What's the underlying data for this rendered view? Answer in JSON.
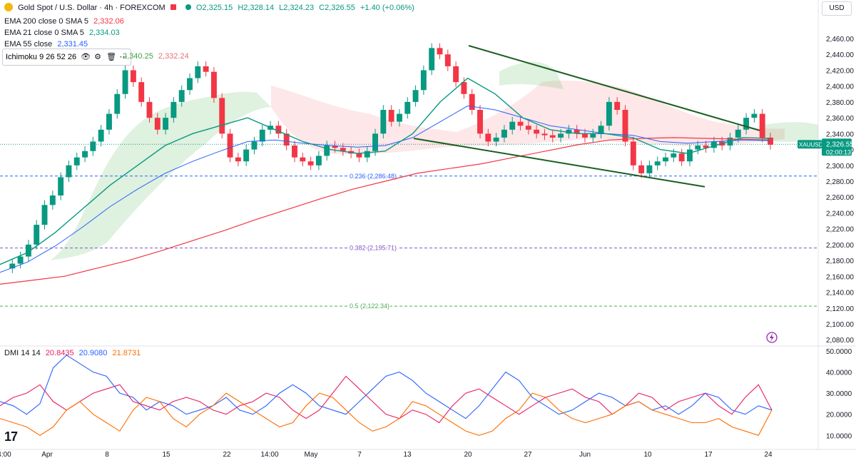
{
  "header": {
    "symbol": "Gold Spot / U.S. Dollar · 4h · FOREXCOM",
    "ohlc": {
      "o": "O2,325.15",
      "h": "H2,328.14",
      "l": "L2,324.23",
      "c": "C2,326.55",
      "chg": "+1.40 (+0.06%)"
    },
    "currency_button": "USD"
  },
  "indicators": {
    "ema200": {
      "label": "EMA 200 close 0 SMA 5",
      "value": "2,332.06",
      "color": "#f23645"
    },
    "ema21": {
      "label": "EMA 21 close 0 SMA 5",
      "value": "2,334.03",
      "color": "#089981"
    },
    "ema55": {
      "label": "EMA 55 close",
      "value": "2,331.45",
      "color": "#2962ff"
    },
    "ichimoku": {
      "label": "Ichimoku 9 26 52 26",
      "value1": "2,340.25",
      "value2": "2,332.24"
    }
  },
  "price_tag": {
    "symbol": "XAUUSD",
    "price": "2,326.55",
    "countdown": "02:00:13"
  },
  "dmi_legend": {
    "label": "DMI 14 14",
    "v1": "20.8435",
    "v2": "20.9080",
    "v3": "21.8731"
  },
  "tv_logo": "17",
  "chart_data": {
    "type": "line",
    "title": "Gold Spot / U.S. Dollar · 4h · FOREXCOM",
    "price_axis": {
      "range": [
        2073,
        2487
      ],
      "ticks": [
        "2,460.00",
        "2,440.00",
        "2,420.00",
        "2,400.00",
        "2,380.00",
        "2,360.00",
        "2,340.00",
        "2,320.00",
        "2,300.00",
        "2,280.00",
        "2,260.00",
        "2,240.00",
        "2,220.00",
        "2,200.00",
        "2,180.00",
        "2,160.00",
        "2,140.00",
        "2,120.00",
        "2,100.00",
        "2,080.00"
      ]
    },
    "time_axis": [
      "4:00",
      "Apr",
      "8",
      "15",
      "22",
      "14:00",
      "May",
      "7",
      "13",
      "20",
      "27",
      "Jun",
      "10",
      "17",
      "24"
    ],
    "fib_levels": [
      {
        "label": "0.236 (2,286.48)",
        "value": 2286.48,
        "color": "#2962ff"
      },
      {
        "label": "0.382 (2,195.71)",
        "value": 2195.71,
        "color": "#7e57c2"
      },
      {
        "label": "0.5 (2,122.34)",
        "value": 2122.34,
        "color": "#4caf50"
      }
    ],
    "close_series": [
      2170,
      2176,
      2185,
      2200,
      2225,
      2250,
      2262,
      2285,
      2300,
      2310,
      2318,
      2330,
      2345,
      2365,
      2390,
      2420,
      2405,
      2380,
      2360,
      2345,
      2360,
      2380,
      2395,
      2410,
      2425,
      2418,
      2385,
      2340,
      2310,
      2305,
      2320,
      2330,
      2345,
      2350,
      2340,
      2325,
      2310,
      2305,
      2300,
      2312,
      2325,
      2322,
      2318,
      2315,
      2310,
      2318,
      2340,
      2370,
      2355,
      2365,
      2380,
      2395,
      2420,
      2448,
      2440,
      2425,
      2405,
      2390,
      2370,
      2340,
      2330,
      2335,
      2345,
      2355,
      2350,
      2345,
      2340,
      2338,
      2335,
      2340,
      2345,
      2340,
      2335,
      2340,
      2350,
      2380,
      2370,
      2330,
      2300,
      2290,
      2300,
      2305,
      2310,
      2315,
      2305,
      2320,
      2325,
      2322,
      2330,
      2325,
      2335,
      2345,
      2360,
      2365,
      2335,
      2326
    ],
    "ema200_series": [
      2150,
      2155,
      2160,
      2170,
      2180,
      2192,
      2205,
      2218,
      2232,
      2245,
      2258,
      2270,
      2280,
      2290,
      2296,
      2302,
      2310,
      2318,
      2326,
      2332,
      2334,
      2335,
      2334,
      2333,
      2332
    ],
    "ema21_series": [
      2175,
      2190,
      2215,
      2245,
      2275,
      2300,
      2325,
      2340,
      2350,
      2360,
      2345,
      2330,
      2320,
      2315,
      2318,
      2340,
      2380,
      2410,
      2390,
      2360,
      2345,
      2340,
      2340,
      2335,
      2320,
      2315,
      2325,
      2335,
      2334
    ],
    "ema55_series": [
      2165,
      2178,
      2198,
      2222,
      2248,
      2270,
      2290,
      2305,
      2318,
      2330,
      2332,
      2328,
      2325,
      2323,
      2325,
      2335,
      2355,
      2375,
      2370,
      2360,
      2350,
      2345,
      2340,
      2338,
      2330,
      2328,
      2330,
      2332,
      2331
    ],
    "dmi": {
      "axis_ticks": [
        "50.0000",
        "40.0000",
        "30.0000",
        "20.0000",
        "10.0000"
      ],
      "range": [
        4,
        52
      ],
      "plus_di": [
        26,
        24,
        20,
        25,
        42,
        48,
        44,
        40,
        38,
        30,
        28,
        22,
        26,
        24,
        20,
        22,
        24,
        28,
        22,
        20,
        24,
        30,
        34,
        30,
        24,
        22,
        20,
        26,
        32,
        38,
        40,
        36,
        30,
        26,
        22,
        18,
        24,
        32,
        40,
        36,
        28,
        24,
        20,
        22,
        26,
        30,
        28,
        24,
        26,
        22,
        24,
        20,
        24,
        30,
        28,
        22,
        20,
        24,
        22
      ],
      "minus_di": [
        24,
        28,
        30,
        34,
        26,
        22,
        26,
        30,
        32,
        34,
        26,
        24,
        22,
        26,
        28,
        26,
        22,
        20,
        24,
        26,
        30,
        28,
        22,
        18,
        22,
        30,
        38,
        32,
        26,
        20,
        18,
        22,
        20,
        16,
        24,
        30,
        32,
        28,
        24,
        20,
        24,
        28,
        30,
        32,
        28,
        26,
        20,
        24,
        30,
        28,
        22,
        26,
        28,
        30,
        24,
        20,
        28,
        34,
        22
      ],
      "adx": [
        18,
        16,
        14,
        10,
        14,
        22,
        26,
        20,
        16,
        12,
        22,
        28,
        26,
        18,
        14,
        20,
        24,
        30,
        26,
        22,
        18,
        14,
        16,
        24,
        30,
        28,
        22,
        16,
        12,
        14,
        18,
        26,
        24,
        20,
        16,
        12,
        10,
        12,
        18,
        22,
        30,
        28,
        22,
        18,
        16,
        18,
        20,
        24,
        26,
        22,
        20,
        18,
        16,
        16,
        18,
        14,
        12,
        10,
        22
      ]
    }
  }
}
